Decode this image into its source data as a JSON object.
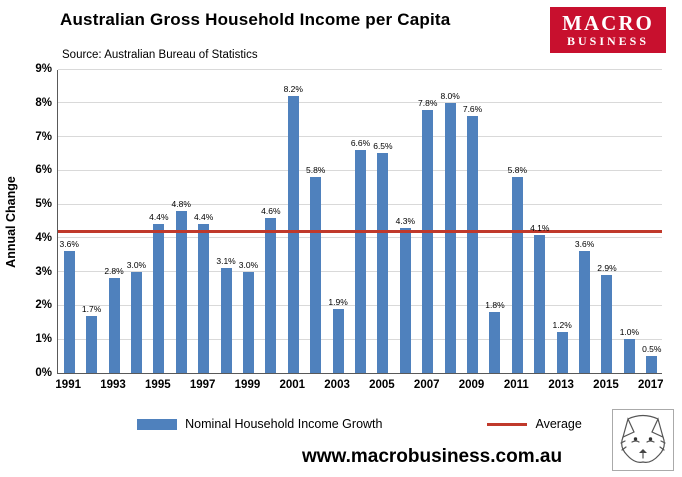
{
  "header": {
    "title": "Australian Gross Household Income per Capita",
    "source": "Source: Australian Bureau of Statistics",
    "logo": {
      "line1": "MACRO",
      "line2": "BUSINESS",
      "bg": "#c8102e"
    }
  },
  "chart_data": {
    "type": "bar",
    "title": "Australian Gross Household Income per Capita",
    "ylabel": "Annual Change",
    "ylim": [
      0,
      9
    ],
    "ytick_step": 1,
    "ytick_suffix": "%",
    "grid": true,
    "categories": [
      1991,
      1992,
      1993,
      1994,
      1995,
      1996,
      1997,
      1998,
      1999,
      2000,
      2001,
      2002,
      2003,
      2004,
      2005,
      2006,
      2007,
      2008,
      2009,
      2010,
      2011,
      2012,
      2013,
      2014,
      2015,
      2016,
      2017
    ],
    "values": [
      3.6,
      1.7,
      2.8,
      3.0,
      4.4,
      4.8,
      4.4,
      3.1,
      3.0,
      4.6,
      8.2,
      5.8,
      1.9,
      6.6,
      6.5,
      4.3,
      7.8,
      8.0,
      7.6,
      1.8,
      5.8,
      4.1,
      1.2,
      3.6,
      2.9,
      1.0,
      0.5
    ],
    "x_tick_labels": [
      "1991",
      "1993",
      "1995",
      "1997",
      "1999",
      "2001",
      "2003",
      "2005",
      "2007",
      "2009",
      "2011",
      "2013",
      "2015",
      "2017"
    ],
    "series_name": "Nominal Household Income Growth",
    "average_line": {
      "value": 4.2,
      "label": "Average"
    },
    "bar_color": "#4F81BD",
    "line_color": "#C0392B",
    "legend_position": "bottom"
  },
  "legend": {
    "series_label": "Nominal Household Income Growth",
    "average_label": "Average"
  },
  "footer": {
    "website": "www.macrobusiness.com.au"
  }
}
